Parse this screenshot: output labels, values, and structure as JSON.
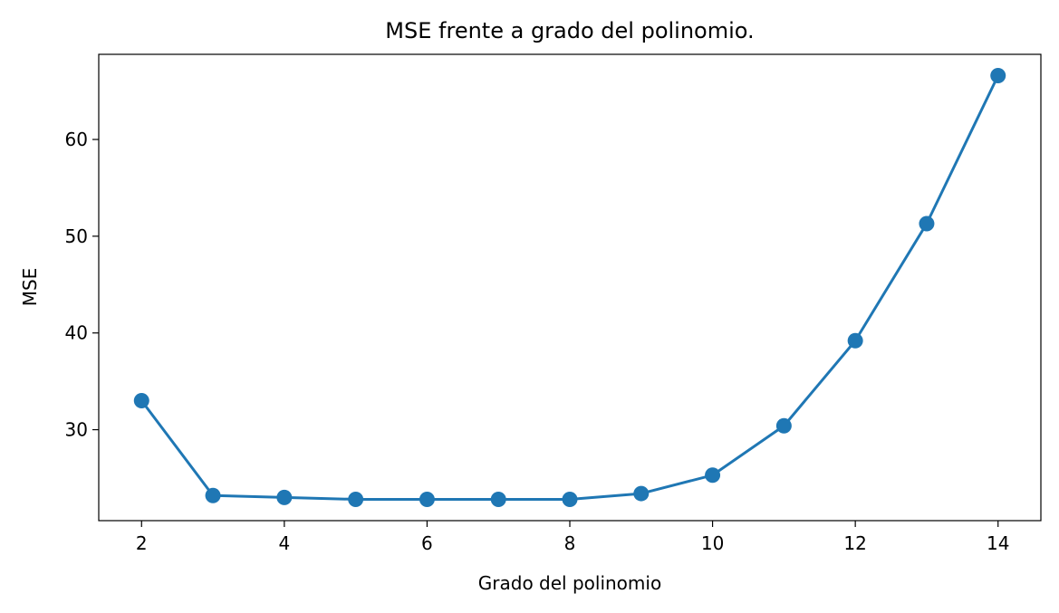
{
  "chart_data": {
    "type": "line",
    "title": "MSE frente a grado del polinomio.",
    "xlabel": "Grado del polinomio",
    "ylabel": "MSE",
    "xlim": [
      1.4,
      14.6
    ],
    "ylim": [
      20.6,
      68.8
    ],
    "xticks": [
      2,
      4,
      6,
      8,
      10,
      12,
      14
    ],
    "yticks": [
      30,
      40,
      50,
      60
    ],
    "grid": false,
    "legend": "none",
    "series": [
      {
        "color": "#1f77b4",
        "marker": "circle",
        "x": [
          2,
          3,
          4,
          5,
          6,
          7,
          8,
          9,
          10,
          11,
          12,
          13,
          14
        ],
        "y": [
          33.0,
          23.2,
          23.0,
          22.8,
          22.8,
          22.8,
          22.8,
          23.4,
          25.3,
          30.4,
          39.2,
          51.3,
          66.6
        ]
      }
    ]
  }
}
